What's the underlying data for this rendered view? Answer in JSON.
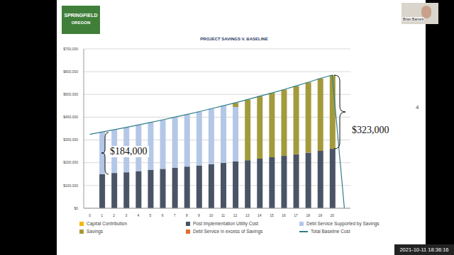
{
  "chart_data": {
    "type": "bar",
    "title": "PROJECT SAVINGS V. BASELINE",
    "stacked": true,
    "grid": true,
    "legend": "bottom",
    "categories": [
      "0",
      "1",
      "2",
      "3",
      "4",
      "5",
      "6",
      "7",
      "8",
      "9",
      "10",
      "11",
      "12",
      "13",
      "14",
      "15",
      "16",
      "17",
      "18",
      "19",
      "20",
      null
    ],
    "ylim": [
      0,
      700000
    ],
    "yticks": [
      {
        "value": 0,
        "label": "$0"
      },
      {
        "value": 100000,
        "label": "$100,000"
      },
      {
        "value": 200000,
        "label": "$200,000"
      },
      {
        "value": 300000,
        "label": "$300,000"
      },
      {
        "value": 400000,
        "label": "$400,000"
      },
      {
        "value": 500000,
        "label": "$500,000"
      },
      {
        "value": 600000,
        "label": "$600,000"
      },
      {
        "value": 700000,
        "label": "$700,000"
      }
    ],
    "series": [
      {
        "name": "Capital Contribution",
        "type": "bar",
        "color": "#f5b800",
        "values": [
          null,
          0,
          0,
          0,
          0,
          0,
          0,
          0,
          0,
          0,
          0,
          0,
          0,
          0,
          0,
          0,
          0,
          0,
          0,
          0,
          0,
          null
        ]
      },
      {
        "name": "Post Implementation Utility Cost",
        "type": "bar",
        "color": "#4a5466",
        "values": [
          null,
          150000,
          155000,
          158000,
          163000,
          168000,
          173000,
          178000,
          183000,
          188000,
          193000,
          199000,
          205000,
          211000,
          218000,
          224000,
          230000,
          237000,
          244000,
          252000,
          261000,
          null
        ]
      },
      {
        "name": "Debt Service Supported by Savings",
        "type": "bar",
        "color": "#b4c7e7",
        "values": [
          null,
          185000,
          190000,
          197000,
          203000,
          209000,
          215000,
          222000,
          229000,
          236000,
          244000,
          251000,
          240000,
          0,
          0,
          0,
          0,
          0,
          0,
          0,
          0,
          null
        ]
      },
      {
        "name": "Savings",
        "type": "bar",
        "color": "#a39a3c",
        "values": [
          null,
          0,
          0,
          0,
          0,
          0,
          0,
          0,
          0,
          0,
          0,
          0,
          18000,
          266000,
          274000,
          282000,
          291000,
          300000,
          309000,
          318000,
          324000,
          null
        ]
      },
      {
        "name": "Debt Service in excess of Savings",
        "type": "bar",
        "color": "#e46c2a",
        "values": [
          null,
          0,
          0,
          0,
          0,
          0,
          0,
          0,
          0,
          0,
          0,
          0,
          0,
          0,
          0,
          0,
          0,
          0,
          0,
          0,
          0,
          null
        ]
      },
      {
        "name": "Total Baseline Cost",
        "type": "line",
        "color": "#2f7d8a",
        "values": [
          325000,
          335000,
          345000,
          355000,
          366000,
          377000,
          388000,
          400000,
          412000,
          424000,
          437000,
          450000,
          463000,
          477000,
          492000,
          506000,
          521000,
          537000,
          553000,
          570000,
          585000,
          0
        ]
      }
    ],
    "annotations": [
      {
        "text": "$184,000"
      },
      {
        "text": "$323,000"
      }
    ]
  },
  "slide": {
    "logo": [
      "SPRINGFIELD",
      "OREGON"
    ],
    "presenter": "Brian Barnett",
    "page_number": 4,
    "timestamp": "2021-10-11 18:36:16"
  }
}
